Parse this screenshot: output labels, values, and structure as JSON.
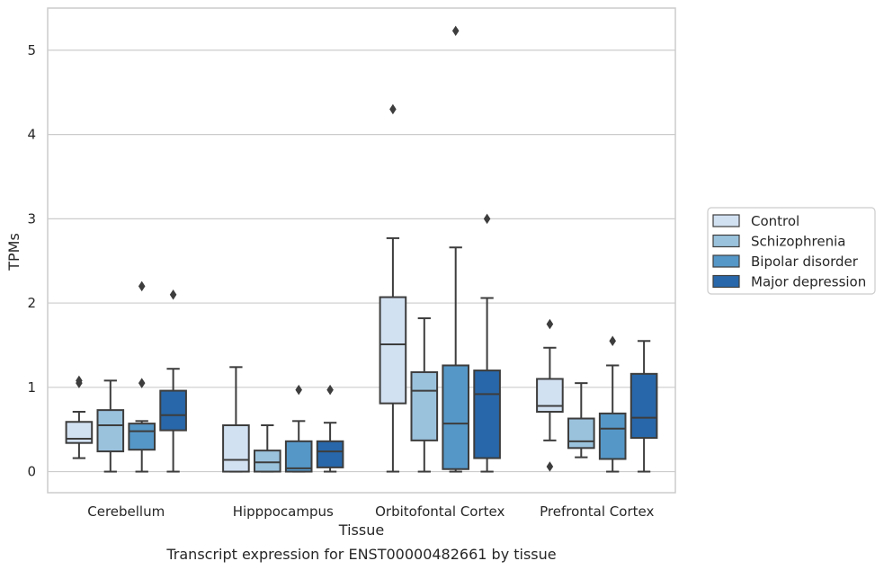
{
  "chart_data": {
    "type": "box",
    "title": "",
    "caption": "Transcript expression for ENST00000482661 by tissue",
    "xlabel": "Tissue",
    "ylabel": "TPMs",
    "ylim": [
      -0.25,
      5.5
    ],
    "yticks": [
      0,
      1,
      2,
      3,
      4,
      5
    ],
    "grid": "horizontal",
    "legend_position": "right",
    "categories": [
      "Cerebellum",
      "Hipppocampus",
      "Orbitofontal Cortex",
      "Prefrontal Cortex"
    ],
    "series": [
      {
        "name": "Control",
        "color": "#d2e1f2",
        "boxes": [
          {
            "whislo": 0.16,
            "q1": 0.34,
            "med": 0.39,
            "q3": 0.59,
            "whishi": 0.71,
            "fliers": [
              1.05,
              1.08
            ]
          },
          {
            "whislo": 0.0,
            "q1": 0.0,
            "med": 0.14,
            "q3": 0.55,
            "whishi": 1.24,
            "fliers": []
          },
          {
            "whislo": 0.0,
            "q1": 0.81,
            "med": 1.51,
            "q3": 2.07,
            "whishi": 2.77,
            "fliers": [
              4.3
            ]
          },
          {
            "whislo": 0.37,
            "q1": 0.71,
            "med": 0.78,
            "q3": 1.1,
            "whishi": 1.47,
            "fliers": [
              1.75,
              0.06
            ]
          }
        ]
      },
      {
        "name": "Schizophrenia",
        "color": "#9ac2dd",
        "boxes": [
          {
            "whislo": 0.0,
            "q1": 0.24,
            "med": 0.55,
            "q3": 0.73,
            "whishi": 1.08,
            "fliers": []
          },
          {
            "whislo": 0.0,
            "q1": 0.0,
            "med": 0.11,
            "q3": 0.25,
            "whishi": 0.55,
            "fliers": []
          },
          {
            "whislo": 0.0,
            "q1": 0.37,
            "med": 0.96,
            "q3": 1.18,
            "whishi": 1.82,
            "fliers": []
          },
          {
            "whislo": 0.17,
            "q1": 0.28,
            "med": 0.36,
            "q3": 0.63,
            "whishi": 1.05,
            "fliers": []
          }
        ]
      },
      {
        "name": "Bipolar disorder",
        "color": "#5597c7",
        "boxes": [
          {
            "whislo": 0.0,
            "q1": 0.26,
            "med": 0.48,
            "q3": 0.57,
            "whishi": 0.6,
            "fliers": [
              1.05,
              2.2
            ]
          },
          {
            "whislo": 0.0,
            "q1": 0.0,
            "med": 0.04,
            "q3": 0.36,
            "whishi": 0.6,
            "fliers": [
              0.97
            ]
          },
          {
            "whislo": 0.0,
            "q1": 0.03,
            "med": 0.57,
            "q3": 1.26,
            "whishi": 2.66,
            "fliers": [
              5.23
            ]
          },
          {
            "whislo": 0.0,
            "q1": 0.15,
            "med": 0.51,
            "q3": 0.69,
            "whishi": 1.26,
            "fliers": [
              1.55
            ]
          }
        ]
      },
      {
        "name": "Major depression",
        "color": "#2867a9",
        "boxes": [
          {
            "whislo": 0.0,
            "q1": 0.49,
            "med": 0.67,
            "q3": 0.96,
            "whishi": 1.22,
            "fliers": [
              2.1
            ]
          },
          {
            "whislo": 0.0,
            "q1": 0.05,
            "med": 0.24,
            "q3": 0.36,
            "whishi": 0.58,
            "fliers": [
              0.97
            ]
          },
          {
            "whislo": 0.0,
            "q1": 0.16,
            "med": 0.92,
            "q3": 1.2,
            "whishi": 2.06,
            "fliers": [
              3.0
            ]
          },
          {
            "whislo": 0.0,
            "q1": 0.4,
            "med": 0.64,
            "q3": 1.16,
            "whishi": 1.55,
            "fliers": []
          }
        ]
      }
    ]
  }
}
